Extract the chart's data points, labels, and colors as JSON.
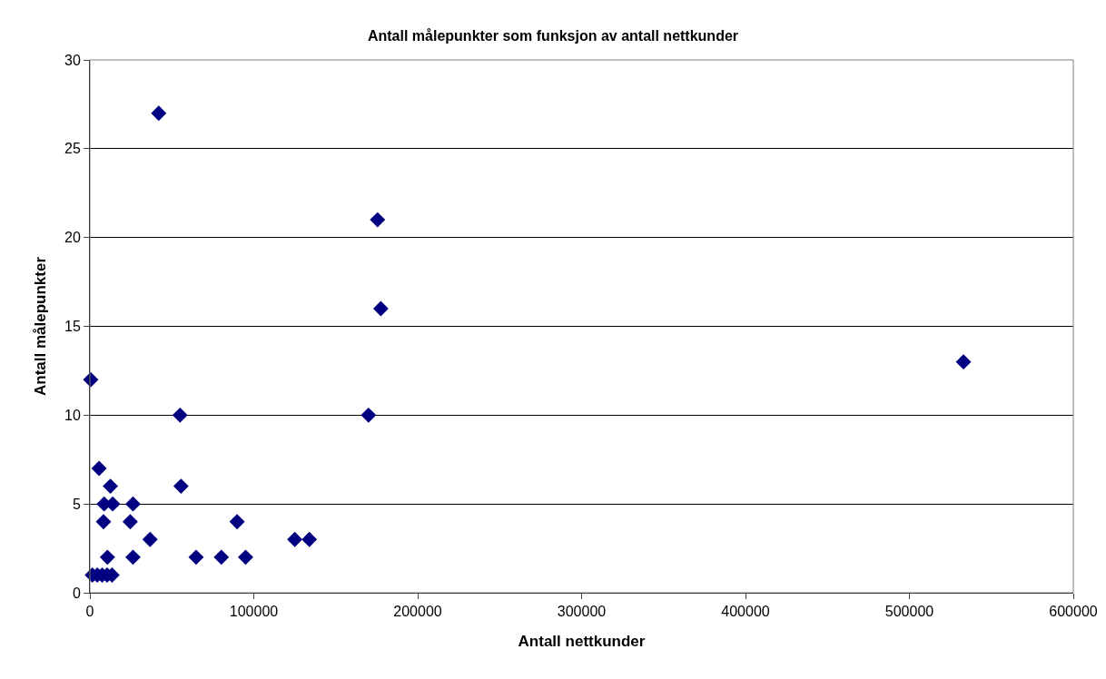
{
  "chart_data": {
    "type": "scatter",
    "title": "Antall målepunkter som funksjon av antall nettkunder",
    "xlabel": "Antall nettkunder",
    "ylabel": "Antall målepunkter",
    "x": [
      500,
      42000,
      175500,
      177500,
      55000,
      170000,
      533000,
      5600,
      12500,
      55600,
      8700,
      13900,
      26300,
      8300,
      24600,
      89800,
      36700,
      125000,
      133900,
      10700,
      26300,
      64800,
      80200,
      95000,
      1500,
      4500,
      7500,
      10500,
      13500
    ],
    "values": [
      12,
      27,
      21,
      16,
      10,
      10,
      13,
      7,
      6,
      6,
      5,
      5,
      5,
      4,
      4,
      4,
      3,
      3,
      3,
      2,
      2,
      2,
      2,
      2,
      1,
      1,
      1,
      1,
      1
    ],
    "color": "#000080",
    "marker": "diamond",
    "xlim": [
      0,
      600000
    ],
    "xticks": [
      0,
      100000,
      200000,
      300000,
      400000,
      500000,
      600000
    ],
    "ylim": [
      0,
      30
    ],
    "yticks": [
      0,
      5,
      10,
      15,
      20,
      25,
      30
    ],
    "grid": "y"
  }
}
